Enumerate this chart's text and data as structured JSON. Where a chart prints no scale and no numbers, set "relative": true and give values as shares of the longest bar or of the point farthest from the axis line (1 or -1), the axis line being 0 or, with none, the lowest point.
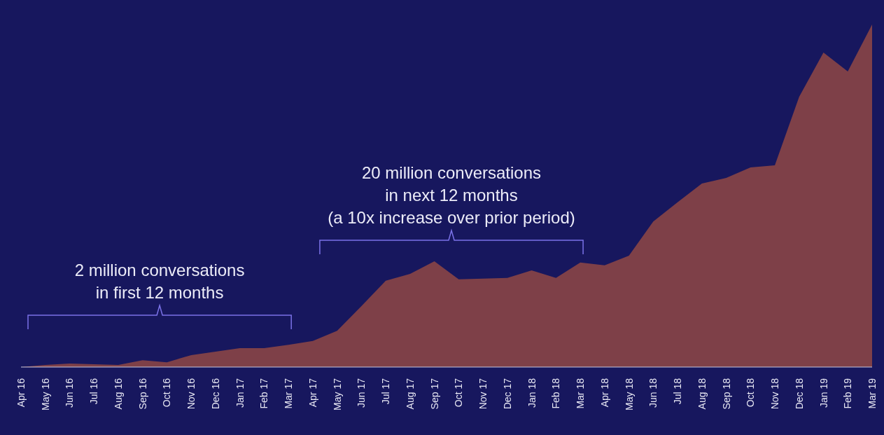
{
  "chart_data": {
    "type": "area",
    "relative": true,
    "categories": [
      "Apr 16",
      "May 16",
      "Jun 16",
      "Jul 16",
      "Aug 16",
      "Sep 16",
      "Oct 16",
      "Nov 16",
      "Dec 16",
      "Jan 17",
      "Feb 17",
      "Mar 17",
      "Apr 17",
      "May 17",
      "Jun 17",
      "Jul 17",
      "Aug 17",
      "Sep 17",
      "Oct 17",
      "Nov 17",
      "Dec 17",
      "Jan 18",
      "Feb 18",
      "Mar 18",
      "Apr 18",
      "May 18",
      "Jun 18",
      "Jul 18",
      "Aug 18",
      "Sep 18",
      "Oct 18",
      "Nov 18",
      "Dec 18",
      "Jan 19",
      "Feb 19",
      "Mar 19"
    ],
    "series": [
      {
        "color": "#7e4048",
        "values": [
          0,
          0.006,
          0.01,
          0.008,
          0.006,
          0.02,
          0.014,
          0.035,
          0.045,
          0.055,
          0.055,
          0.065,
          0.076,
          0.106,
          0.178,
          0.252,
          0.272,
          0.309,
          0.256,
          0.258,
          0.26,
          0.282,
          0.26,
          0.305,
          0.297,
          0.325,
          0.425,
          0.481,
          0.536,
          0.552,
          0.583,
          0.589,
          0.789,
          0.918,
          0.863,
          1
        ]
      }
    ],
    "annotations": [
      "2 million conversations\nin first 12 months",
      "20 million conversations\nin next 12 months\n(a 10x increase over prior period)"
    ]
  }
}
